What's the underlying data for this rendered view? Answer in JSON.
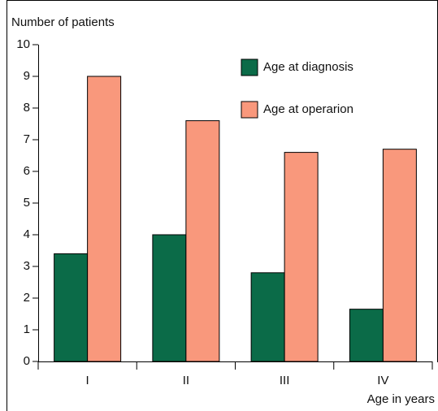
{
  "chart_data": {
    "type": "bar",
    "y_label": "Number of patients",
    "x_label": "Age in years",
    "categories": [
      "I",
      "II",
      "III",
      "IV"
    ],
    "series": [
      {
        "name": "Age at diagnosis",
        "color": "#0b6b48",
        "values": [
          3.4,
          4.0,
          2.8,
          1.65
        ]
      },
      {
        "name": "Age at operarion",
        "color": "#f9987c",
        "values": [
          9.0,
          7.6,
          6.6,
          6.7
        ]
      }
    ],
    "ylim": [
      0,
      10
    ],
    "yticks": [
      0,
      1,
      2,
      3,
      4,
      5,
      6,
      7,
      8,
      9,
      10
    ]
  }
}
